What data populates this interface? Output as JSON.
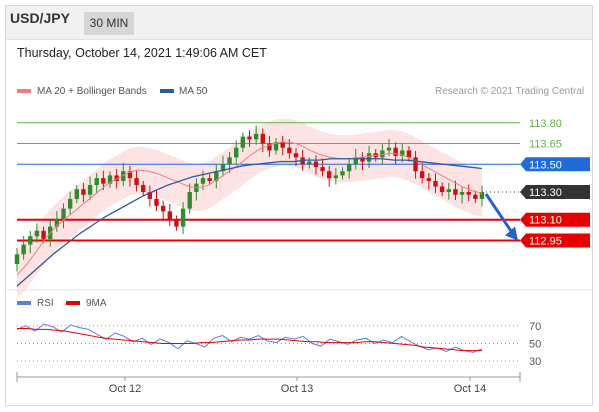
{
  "header": {
    "pair": "USD/JPY",
    "timeframe": "30 MIN"
  },
  "timestamp": "Thursday, October 14, 2021 1:49:06 AM CET",
  "legend": {
    "ma20": "MA 20 + Bollinger Bands",
    "ma50": "MA 50",
    "rsi": "RSI",
    "rsi_ma": "9MA"
  },
  "credit": "Research © 2021 Trading Central",
  "colors": {
    "ma20": "#f08080",
    "ma50": "#2e5a9e",
    "bands": "#fde3e3",
    "up": "#2e8b2e",
    "down": "#cc1111",
    "support": "#e60000",
    "resistance": "#5bb544",
    "pivot": "#1f6bd8",
    "last": "#333333",
    "rsi": "#5b7fd8",
    "rsi_ma": "#e60000"
  },
  "chart_data": [
    {
      "type": "candlestick",
      "ylim": [
        112.65,
        113.95
      ],
      "x_tick_labels": [
        "Oct 12",
        "Oct 13",
        "Oct 14"
      ],
      "levels": [
        {
          "value": 113.8,
          "label": "113.80",
          "role": "resistance"
        },
        {
          "value": 113.65,
          "label": "113.65",
          "role": "resistance"
        },
        {
          "value": 113.5,
          "label": "113.50",
          "role": "pivot"
        },
        {
          "value": 113.3,
          "label": "113.30",
          "role": "last"
        },
        {
          "value": 113.1,
          "label": "113.10",
          "role": "support"
        },
        {
          "value": 112.95,
          "label": "112.95",
          "role": "support"
        }
      ],
      "price_path": [
        112.78,
        112.85,
        112.92,
        112.98,
        113.02,
        112.96,
        113.05,
        113.1,
        113.18,
        113.25,
        113.32,
        113.28,
        113.35,
        113.4,
        113.36,
        113.42,
        113.38,
        113.45,
        113.4,
        113.35,
        113.3,
        113.25,
        113.2,
        113.16,
        113.1,
        113.05,
        113.18,
        113.3,
        113.36,
        113.4,
        113.38,
        113.45,
        113.5,
        113.55,
        113.62,
        113.7,
        113.68,
        113.72,
        113.65,
        113.6,
        113.66,
        113.62,
        113.58,
        113.55,
        113.5,
        113.52,
        113.48,
        113.45,
        113.4,
        113.42,
        113.45,
        113.5,
        113.55,
        113.52,
        113.58,
        113.55,
        113.6,
        113.62,
        113.56,
        113.6,
        113.55,
        113.45,
        113.4,
        113.38,
        113.34,
        113.3,
        113.32,
        113.28,
        113.3,
        113.28,
        113.25,
        113.3
      ],
      "series": [
        {
          "name": "MA 20",
          "values": [
            112.7,
            112.78,
            112.88,
            112.98,
            113.06,
            113.12,
            113.18,
            113.24,
            113.3,
            113.36,
            113.4,
            113.44,
            113.46,
            113.45,
            113.43,
            113.4,
            113.37,
            113.34,
            113.33,
            113.35,
            113.4,
            113.45,
            113.5,
            113.56,
            113.61,
            113.64,
            113.66,
            113.66,
            113.64,
            113.6,
            113.57,
            113.55,
            113.54,
            113.54,
            113.55,
            113.56,
            113.57,
            113.58,
            113.57,
            113.54,
            113.5,
            113.46,
            113.42,
            113.38,
            113.34,
            113.31,
            113.29
          ]
        },
        {
          "name": "MA 50",
          "values": [
            112.62,
            112.7,
            112.78,
            112.86,
            112.93,
            113.0,
            113.06,
            113.12,
            113.17,
            113.22,
            113.27,
            113.31,
            113.35,
            113.38,
            113.41,
            113.43,
            113.45,
            113.47,
            113.49,
            113.5,
            113.51,
            113.52,
            113.52,
            113.53,
            113.53,
            113.54,
            113.54,
            113.54,
            113.54,
            113.54,
            113.53,
            113.53,
            113.52,
            113.51,
            113.5,
            113.49,
            113.48,
            113.47
          ]
        }
      ]
    },
    {
      "type": "line",
      "ylim": [
        20,
        80
      ],
      "y_tick_labels": [
        "70",
        "50",
        "30"
      ],
      "series": [
        {
          "name": "RSI",
          "values": [
            66,
            70,
            64,
            72,
            69,
            63,
            71,
            68,
            66,
            60,
            55,
            62,
            58,
            52,
            56,
            49,
            55,
            51,
            44,
            53,
            50,
            46,
            56,
            59,
            52,
            57,
            55,
            59,
            53,
            51,
            57,
            55,
            58,
            50,
            47,
            55,
            52,
            49,
            54,
            56,
            50,
            54,
            51,
            58,
            52,
            47,
            43,
            45,
            41,
            46,
            42,
            40,
            44
          ]
        },
        {
          "name": "9MA",
          "values": [
            67,
            67,
            66,
            66,
            65,
            64,
            62,
            60,
            58,
            56,
            55,
            54,
            53,
            52,
            51,
            50,
            50,
            50,
            50,
            51,
            51,
            52,
            53,
            54,
            54,
            55,
            55,
            55,
            54,
            53,
            52,
            52,
            51,
            51,
            51,
            51,
            52,
            52,
            51,
            50,
            49,
            48,
            46,
            45,
            44,
            43,
            42,
            42,
            42
          ]
        }
      ]
    }
  ]
}
